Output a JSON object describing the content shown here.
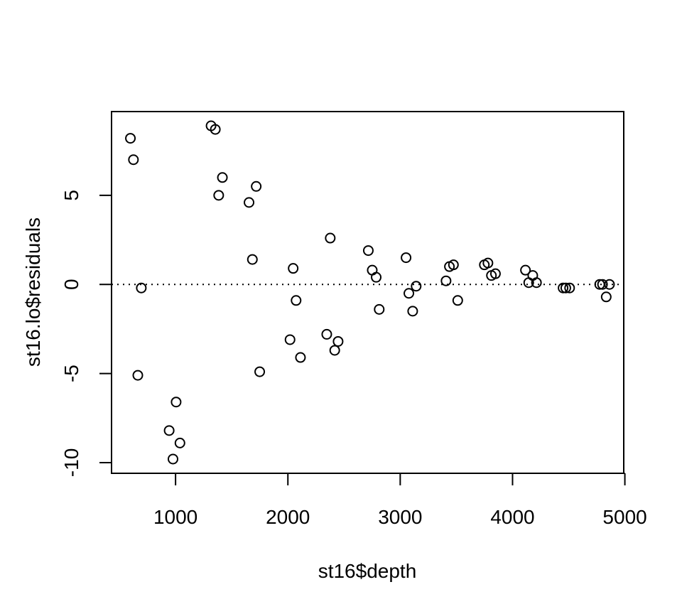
{
  "chart_data": {
    "type": "scatter",
    "xlabel": "st16$depth",
    "ylabel": "st16.lo$residuals",
    "xlim": [
      430,
      4990
    ],
    "ylim": [
      -10.6,
      9.7
    ],
    "x_ticks": [
      1000,
      2000,
      3000,
      4000,
      5000
    ],
    "y_ticks": [
      -10,
      -5,
      0,
      5
    ],
    "y_tick_labels": [
      "-10",
      "-5",
      "0",
      "5"
    ],
    "reference_line": {
      "y": 0,
      "style": "dotted"
    },
    "grid": false,
    "legend": "none",
    "marker": "open-circle",
    "colors": {
      "points": "#000000",
      "axes": "#000000",
      "background": "#ffffff"
    },
    "x": [
      598,
      625,
      664,
      695,
      943,
      977,
      1005,
      1039,
      1316,
      1354,
      1384,
      1417,
      1654,
      1684,
      1718,
      1749,
      2019,
      2047,
      2073,
      2112,
      2346,
      2377,
      2417,
      2447,
      2716,
      2751,
      2786,
      2813,
      3052,
      3077,
      3111,
      3142,
      3408,
      3438,
      3474,
      3512,
      3749,
      3781,
      3812,
      3848,
      4115,
      4144,
      4180,
      4213,
      4450,
      4474,
      4508,
      4776,
      4801,
      4834,
      4863
    ],
    "y": [
      8.2,
      7.0,
      -5.1,
      -0.2,
      -8.2,
      -9.8,
      -6.6,
      -8.9,
      8.9,
      8.7,
      5.0,
      6.0,
      4.6,
      1.4,
      5.5,
      -4.9,
      -3.1,
      0.9,
      -0.9,
      -4.1,
      -2.8,
      2.6,
      -3.7,
      -3.2,
      1.9,
      0.8,
      0.4,
      -1.4,
      1.5,
      -0.5,
      -1.5,
      -0.1,
      0.2,
      1.0,
      1.1,
      -0.9,
      1.1,
      1.2,
      0.5,
      0.6,
      0.8,
      0.1,
      0.5,
      0.1,
      -0.2,
      -0.2,
      -0.2,
      0.0,
      0.0,
      -0.7,
      0.0
    ]
  }
}
